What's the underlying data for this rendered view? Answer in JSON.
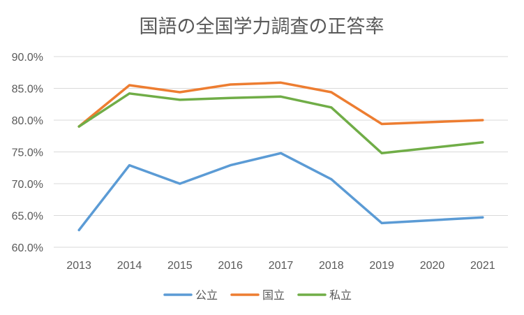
{
  "chart_data": {
    "type": "line",
    "title": "国語の全国学力調査の正答率",
    "xlabel": "",
    "ylabel": "",
    "x": [
      2013,
      2014,
      2015,
      2016,
      2017,
      2018,
      2019,
      2020,
      2021
    ],
    "x_labels": [
      "2013",
      "2014",
      "2015",
      "2016",
      "2017",
      "2018",
      "2019",
      "2020",
      "2021"
    ],
    "ylim": [
      60,
      90
    ],
    "yticks": [
      60,
      65,
      70,
      75,
      80,
      85,
      90
    ],
    "ytick_labels": [
      "60.0%",
      "65.0%",
      "70.0%",
      "75.0%",
      "80.0%",
      "85.0%",
      "90.0%"
    ],
    "grid": true,
    "legend_position": "bottom",
    "series": [
      {
        "name": "公立",
        "color": "#5b9bd5",
        "values": [
          62.7,
          72.9,
          70.0,
          72.9,
          74.8,
          70.7,
          63.8,
          null,
          64.7
        ]
      },
      {
        "name": "国立",
        "color": "#ed7d31",
        "values": [
          79.0,
          85.5,
          84.4,
          85.6,
          85.9,
          84.4,
          79.4,
          null,
          80.0
        ]
      },
      {
        "name": "私立",
        "color": "#70ad47",
        "values": [
          79.0,
          84.2,
          83.2,
          83.5,
          83.7,
          82.0,
          74.8,
          null,
          76.5
        ]
      }
    ]
  }
}
